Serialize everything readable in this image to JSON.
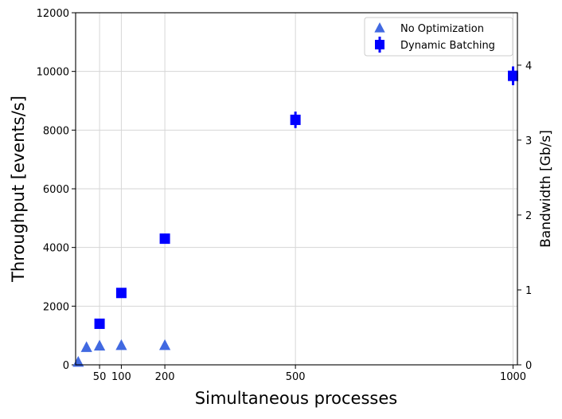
{
  "chart_data": {
    "type": "scatter",
    "xlabel": "Simultaneous processes",
    "ylabel": "Throughput [events/s]",
    "y2label": "Bandwidth [Gb/s]",
    "xlim": [
      -5,
      1010
    ],
    "ylim": [
      0,
      12000
    ],
    "y2lim": [
      0,
      4.7
    ],
    "xticks": [
      50,
      100,
      200,
      500,
      1000
    ],
    "yticks": [
      0,
      2000,
      4000,
      6000,
      8000,
      10000,
      12000
    ],
    "y2ticks": [
      0,
      1,
      2,
      3,
      4
    ],
    "xgrid": [
      50,
      100,
      200,
      500,
      1000
    ],
    "ygrid": [
      2000,
      4000,
      6000,
      8000,
      10000
    ],
    "legend_position": "top-right",
    "series": [
      {
        "name": "No Optimization",
        "marker": "triangle",
        "color": "#4169e1",
        "x": [
          1,
          20,
          50,
          100,
          200
        ],
        "y": [
          100,
          600,
          650,
          670,
          670
        ],
        "yerr": [
          0,
          0,
          0,
          0,
          0
        ]
      },
      {
        "name": "Dynamic Batching",
        "marker": "square",
        "color": "#0000ff",
        "x": [
          50,
          100,
          200,
          500,
          1000
        ],
        "y": [
          1400,
          2450,
          4300,
          8350,
          9850
        ],
        "yerr": [
          0,
          0,
          0,
          280,
          320
        ]
      }
    ]
  }
}
